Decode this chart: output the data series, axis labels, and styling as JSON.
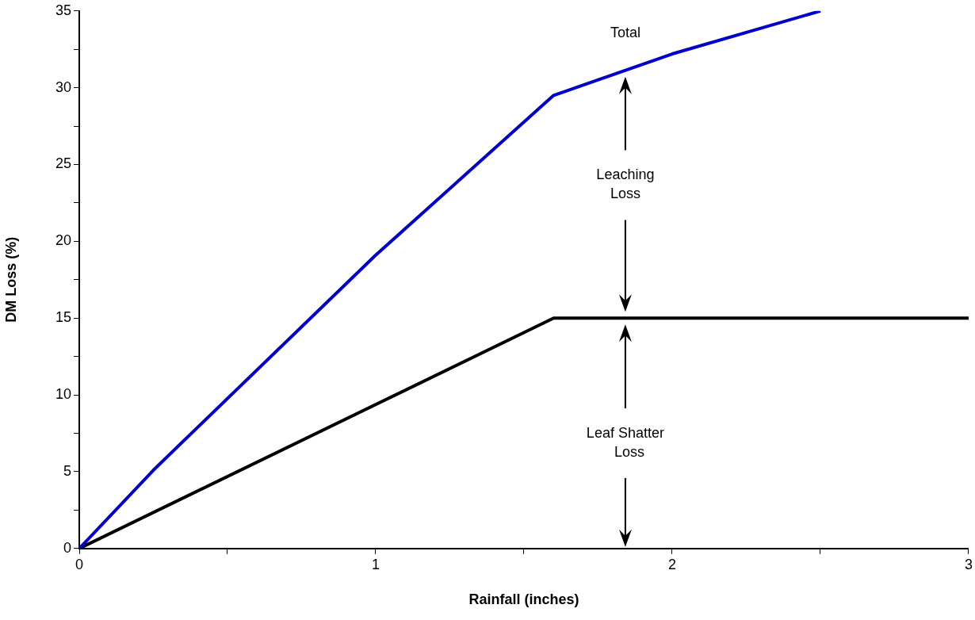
{
  "chart_data": {
    "type": "line",
    "xlabel": "Rainfall (inches)",
    "ylabel": "DM Loss (%)",
    "xlim": [
      0,
      3
    ],
    "xticks": [
      0,
      {
        "value": 0.5,
        "label": null
      },
      1,
      {
        "value": 1.5,
        "label": null
      },
      2,
      {
        "value": 2.5,
        "label": null
      },
      3
    ],
    "ylim": [
      0,
      35
    ],
    "yticks": [
      0,
      {
        "value": 2.5,
        "label": null
      },
      5,
      {
        "value": 7.5,
        "label": null
      },
      10,
      {
        "value": 12.5,
        "label": null
      },
      15,
      {
        "value": 17.5,
        "label": null
      },
      20,
      {
        "value": 22.5,
        "label": null
      },
      25,
      {
        "value": 27.5,
        "label": null
      },
      30,
      {
        "value": 32.5,
        "label": null
      },
      35
    ],
    "grid": false,
    "legend": false,
    "marker": "none",
    "line_style": "solid",
    "series": [
      {
        "color": "#0000cc",
        "x": [
          0,
          0.25,
          1,
          1.6,
          2,
          2.5
        ],
        "values": [
          0,
          5.1,
          19.1,
          29.5,
          32.2,
          35
        ]
      },
      {
        "color": "#000000",
        "x": [
          0,
          1.6,
          3
        ],
        "values": [
          0,
          15,
          15
        ]
      }
    ],
    "annotations": [
      "Total",
      "Leaching\nLoss",
      "Leaf Shatter\n  Loss"
    ]
  }
}
